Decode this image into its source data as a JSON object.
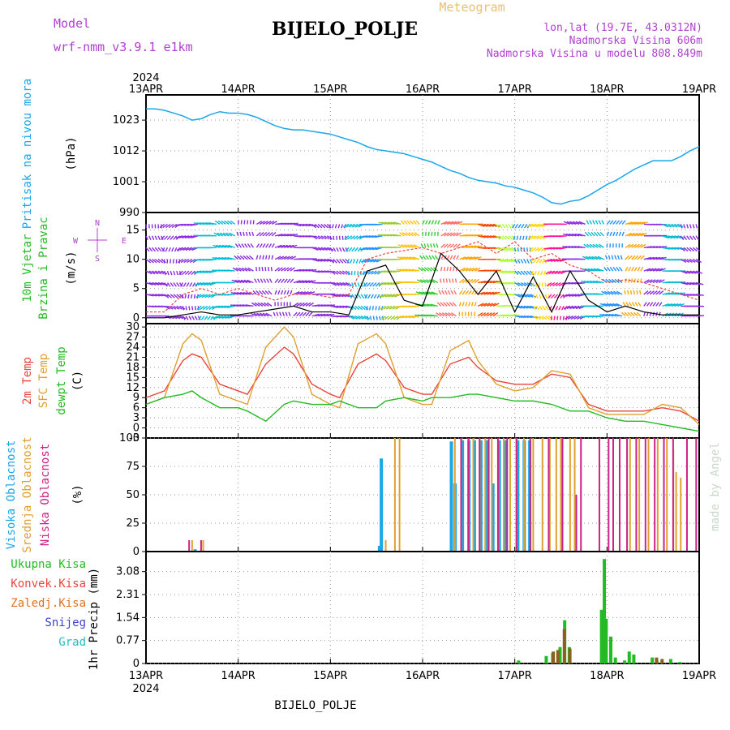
{
  "header": {
    "model_label": "Model",
    "model_name": "wrf-nmm_v3.9.1  e1km",
    "station": "BIJELO_POLJE",
    "product": "Meteogram",
    "coords": "lon,lat (19.7E, 43.0312N)",
    "elevation": "Nadmorska Visina 606m",
    "model_elevation": "Nadmorska Visina u modelu 808.849m",
    "footer_station": "BIJELO_POLJE",
    "credit": "made by Angel"
  },
  "colors": {
    "pressure": "#1aa7e8",
    "wind_label": "#22bb22",
    "compass": "#b040d0",
    "temp2m": "#e8453c",
    "sfc": "#e0a030",
    "dewpt": "#22bb22",
    "high_cloud": "#1aa7e8",
    "mid_cloud": "#e0a030",
    "low_cloud": "#cc2288",
    "total_precip": "#22bb22",
    "conv_precip": "#e8453c",
    "frozen": "#e07020",
    "snow": "#4040d0",
    "hail": "#20c0c0",
    "credit": "#c8d8c8"
  },
  "time_axis": {
    "year": "2024",
    "labels": [
      "13APR",
      "14APR",
      "15APR",
      "16APR",
      "17APR",
      "18APR",
      "19APR"
    ]
  },
  "chart_data": [
    {
      "type": "line",
      "id": "pressure",
      "ylabel": "(hPa)",
      "title_lines": [
        "Pritisak na nivou mora"
      ],
      "ylim": [
        990,
        1032
      ],
      "yticks": [
        990,
        1001,
        1012,
        1023
      ],
      "x": [
        0,
        0.1,
        0.2,
        0.3,
        0.4,
        0.5,
        0.6,
        0.7,
        0.8,
        0.9,
        1.0,
        1.1,
        1.2,
        1.3,
        1.4,
        1.5,
        1.6,
        1.7,
        1.8,
        1.9,
        2.0,
        2.1,
        2.2,
        2.3,
        2.4,
        2.5,
        2.6,
        2.7,
        2.8,
        2.9,
        3.0,
        3.1,
        3.2,
        3.3,
        3.4,
        3.5,
        3.6,
        3.7,
        3.8,
        3.9,
        4.0,
        4.1,
        4.2,
        4.3,
        4.4,
        4.5,
        4.6,
        4.7,
        4.8,
        4.9,
        5.0,
        5.1,
        5.2,
        5.3,
        5.4,
        5.5,
        5.6,
        5.7,
        5.8,
        5.9,
        6.0
      ],
      "values": [
        1027,
        1027,
        1026.5,
        1025.5,
        1024.5,
        1023,
        1023.5,
        1025,
        1026,
        1025.5,
        1025.5,
        1025,
        1024,
        1022.5,
        1021,
        1020,
        1019.5,
        1019.5,
        1019,
        1018.5,
        1018,
        1017,
        1016,
        1015,
        1013.5,
        1012.5,
        1012,
        1011.5,
        1011,
        1010,
        1009,
        1008,
        1006.5,
        1005,
        1004,
        1002.5,
        1001.5,
        1001,
        1000.5,
        999.5,
        999,
        998,
        997,
        995.5,
        993.5,
        993,
        994,
        994.5,
        996,
        998,
        1000,
        1001.5,
        1003.5,
        1005.5,
        1007,
        1008.5,
        1008.5,
        1008.5,
        1010,
        1012,
        1013.5
      ],
      "series_names": []
    },
    {
      "type": "line",
      "id": "wind",
      "ylabel": "(m/s)",
      "title_lines": [
        "10m Vjetar",
        "Brzina i Pravac"
      ],
      "ylim": [
        -1,
        18
      ],
      "yticks": [
        0,
        5,
        10,
        15
      ],
      "compass": {
        "n": "N",
        "s": "S",
        "e": "E",
        "w": "W"
      },
      "series": [
        {
          "name": "",
          "color": "#e8453c",
          "x": [
            0,
            0.2,
            0.4,
            0.6,
            0.8,
            1.0,
            1.2,
            1.4,
            1.6,
            1.8,
            2.0,
            2.2,
            2.4,
            2.6,
            2.8,
            3.0,
            3.2,
            3.4,
            3.6,
            3.8,
            4.0,
            4.2,
            4.4,
            4.6,
            4.8,
            5.0,
            5.2,
            5.4,
            5.6,
            5.8,
            6.0
          ],
          "values": [
            1,
            1,
            4,
            5,
            4,
            5,
            4,
            3,
            4,
            4,
            3.5,
            4,
            10,
            11,
            11.5,
            12,
            11,
            12,
            13,
            11,
            13,
            10,
            11,
            9,
            8,
            6,
            6.5,
            6,
            5,
            4,
            3
          ]
        },
        {
          "name": "",
          "color": "#000000",
          "x": [
            0,
            0.2,
            0.4,
            0.6,
            0.8,
            1.0,
            1.2,
            1.4,
            1.6,
            1.8,
            2.0,
            2.2,
            2.4,
            2.6,
            2.8,
            3.0,
            3.2,
            3.4,
            3.6,
            3.8,
            4.0,
            4.2,
            4.4,
            4.6,
            4.8,
            5.0,
            5.2,
            5.4,
            5.6,
            5.8,
            6.0
          ],
          "values": [
            0,
            0,
            0.5,
            1,
            0.5,
            0.5,
            1,
            1.5,
            2,
            1,
            1,
            0.5,
            8,
            9,
            3,
            2,
            11,
            8,
            4,
            8,
            1,
            7,
            1,
            8,
            3,
            1,
            2,
            1,
            0.5,
            0.5,
            0.5
          ]
        }
      ],
      "barb_colors": [
        "#8a2be2",
        "#8a2be2",
        "#8a2be2",
        "#00bcd4",
        "#00bcd4",
        "#8a2be2",
        "#8a2be2",
        "#8a2be2",
        "#8a2be2",
        "#8a2be2",
        "#8a2be2",
        "#00bcd4",
        "#1e90ff",
        "#9acd32",
        "#ffc107",
        "#32cd32",
        "#ff6b6b",
        "#ffa500",
        "#ff4500",
        "#adff2f",
        "#1e90ff",
        "#ffd700",
        "#ff1493",
        "#8a2be2",
        "#00bcd4",
        "#1e90ff",
        "#ffa500",
        "#8a2be2",
        "#00bcd4",
        "#8a2be2"
      ]
    },
    {
      "type": "line",
      "id": "temperature",
      "ylabel": "(C)",
      "title_lines": [
        "2m Temp",
        "SFC Temp",
        "dewpt Temp"
      ],
      "ylim": [
        -3,
        31
      ],
      "yticks": [
        -3,
        0,
        3,
        6,
        9,
        12,
        15,
        18,
        21,
        24,
        27,
        30
      ],
      "series": [
        {
          "name": "2m Temp",
          "color": "#e8453c",
          "x": [
            0,
            0.2,
            0.4,
            0.5,
            0.6,
            0.8,
            1.0,
            1.1,
            1.3,
            1.5,
            1.6,
            1.8,
            2.0,
            2.1,
            2.3,
            2.5,
            2.6,
            2.8,
            3.0,
            3.1,
            3.3,
            3.5,
            3.6,
            3.8,
            4.0,
            4.2,
            4.4,
            4.6,
            4.8,
            5.0,
            5.2,
            5.4,
            5.6,
            5.8,
            6.0
          ],
          "values": [
            9,
            11,
            20,
            22,
            21,
            13,
            11,
            10,
            19,
            24,
            22,
            13,
            10,
            9,
            19,
            22,
            20,
            12,
            10,
            10,
            19,
            21,
            18,
            14,
            13,
            13,
            16,
            15,
            7,
            5,
            5,
            5,
            6,
            5,
            2
          ]
        },
        {
          "name": "SFC Temp",
          "color": "#e0a030",
          "x": [
            0,
            0.2,
            0.4,
            0.5,
            0.6,
            0.8,
            1.0,
            1.1,
            1.3,
            1.5,
            1.6,
            1.8,
            2.0,
            2.1,
            2.3,
            2.5,
            2.6,
            2.8,
            3.0,
            3.1,
            3.3,
            3.5,
            3.6,
            3.8,
            4.0,
            4.2,
            4.4,
            4.6,
            4.8,
            5.0,
            5.2,
            5.4,
            5.6,
            5.8,
            6.0
          ],
          "values": [
            7,
            9,
            25,
            28,
            26,
            10,
            8,
            7,
            24,
            30,
            27,
            10,
            7,
            6,
            25,
            28,
            25,
            9,
            7,
            7,
            23,
            26,
            20,
            13,
            11,
            12,
            17,
            16,
            6,
            4,
            4,
            4,
            7,
            6,
            1
          ]
        },
        {
          "name": "dewpt Temp",
          "color": "#22bb22",
          "x": [
            0,
            0.2,
            0.4,
            0.5,
            0.6,
            0.8,
            1.0,
            1.1,
            1.3,
            1.5,
            1.6,
            1.8,
            2.0,
            2.1,
            2.3,
            2.5,
            2.6,
            2.8,
            3.0,
            3.1,
            3.3,
            3.5,
            3.6,
            3.8,
            4.0,
            4.2,
            4.4,
            4.6,
            4.8,
            5.0,
            5.2,
            5.4,
            5.6,
            5.8,
            6.0
          ],
          "values": [
            7,
            9,
            10,
            11,
            9,
            6,
            6,
            5,
            2,
            7,
            8,
            7,
            7,
            8,
            6,
            6,
            8,
            9,
            8,
            9,
            9,
            10,
            10,
            9,
            8,
            8,
            7,
            5,
            5,
            3,
            2,
            2,
            1,
            0,
            -1
          ]
        }
      ]
    },
    {
      "type": "bar",
      "id": "clouds",
      "ylabel": "(%)",
      "title_lines": [
        "Visoka Oblacnost",
        "Srednja Oblacnost",
        "Niska Oblacnost"
      ],
      "ylim": [
        0,
        100
      ],
      "yticks": [
        0,
        25,
        50,
        75,
        100
      ],
      "series": [
        {
          "name": "Visoka Oblacnost",
          "color": "#1aa7e8",
          "x": [
            0.55,
            2.55,
            2.57,
            3.33,
            3.37,
            3.45,
            3.52,
            3.58,
            3.65,
            3.72,
            3.78,
            3.85,
            3.92,
            4.05,
            4.12,
            4.18
          ],
          "values": [
            2,
            5,
            82,
            97,
            60,
            98,
            98,
            98,
            98,
            98,
            60,
            98,
            98,
            98,
            98,
            98
          ]
        },
        {
          "name": "Srednja Oblacnost",
          "color": "#e0a030",
          "x": [
            0.5,
            0.62,
            2.6,
            2.7,
            2.75,
            3.35,
            3.42,
            3.5,
            3.55,
            3.62,
            3.68,
            3.75,
            3.82,
            3.88,
            3.95,
            4.02,
            4.1,
            4.2,
            4.3,
            4.38,
            4.45,
            4.5,
            4.6,
            4.65,
            5.25,
            5.35,
            5.45,
            5.55,
            5.65,
            5.72,
            5.75,
            5.8
          ],
          "values": [
            10,
            10,
            10,
            100,
            100,
            100,
            100,
            100,
            100,
            100,
            100,
            100,
            100,
            100,
            100,
            100,
            100,
            100,
            100,
            100,
            100,
            100,
            100,
            100,
            100,
            100,
            100,
            100,
            100,
            90,
            70,
            65
          ]
        },
        {
          "name": "Niska Oblacnost",
          "color": "#cc2288",
          "x": [
            0.45,
            0.58,
            3.4,
            3.48,
            3.6,
            3.7,
            3.8,
            3.9,
            4.0,
            4.15,
            4.35,
            4.5,
            4.65,
            4.7,
            4.9,
            5.0,
            5.05,
            5.12,
            5.2,
            5.3,
            5.4,
            5.5,
            5.6,
            5.7,
            5.85,
            5.95
          ],
          "values": [
            10,
            10,
            100,
            100,
            100,
            100,
            100,
            100,
            100,
            100,
            100,
            100,
            50,
            100,
            100,
            100,
            100,
            100,
            100,
            100,
            100,
            100,
            100,
            100,
            100,
            100
          ]
        }
      ]
    },
    {
      "type": "bar",
      "id": "precip",
      "ylabel": "1hr Precip (mm)",
      "title_lines": [
        "Ukupna Kisa",
        "Konvek.Kisa",
        "Zaledj.Kisa",
        "Snijeg",
        "Grad"
      ],
      "ylim": [
        0,
        3.75
      ],
      "yticks": [
        0,
        0.77,
        1.54,
        2.31,
        3.08
      ],
      "series": [
        {
          "name": "Ukupna Kisa",
          "color": "#22bb22",
          "x": [
            4.05,
            4.35,
            4.42,
            4.5,
            4.55,
            4.6,
            4.95,
            4.98,
            5.0,
            5.05,
            5.1,
            5.2,
            5.25,
            5.3,
            5.5,
            5.55,
            5.7,
            5.8
          ],
          "values": [
            0.1,
            0.25,
            0.35,
            0.55,
            1.45,
            0.55,
            1.8,
            3.5,
            1.5,
            0.9,
            0.2,
            0.1,
            0.4,
            0.3,
            0.2,
            0.1,
            0.15,
            0.05
          ]
        },
        {
          "name": "Konvek.Kisa",
          "color": "#8a6020",
          "x": [
            4.4,
            4.45,
            4.52,
            4.58,
            5.52,
            5.58
          ],
          "values": [
            0.4,
            0.45,
            1.15,
            0.5,
            0.2,
            0.15
          ]
        }
      ]
    }
  ]
}
